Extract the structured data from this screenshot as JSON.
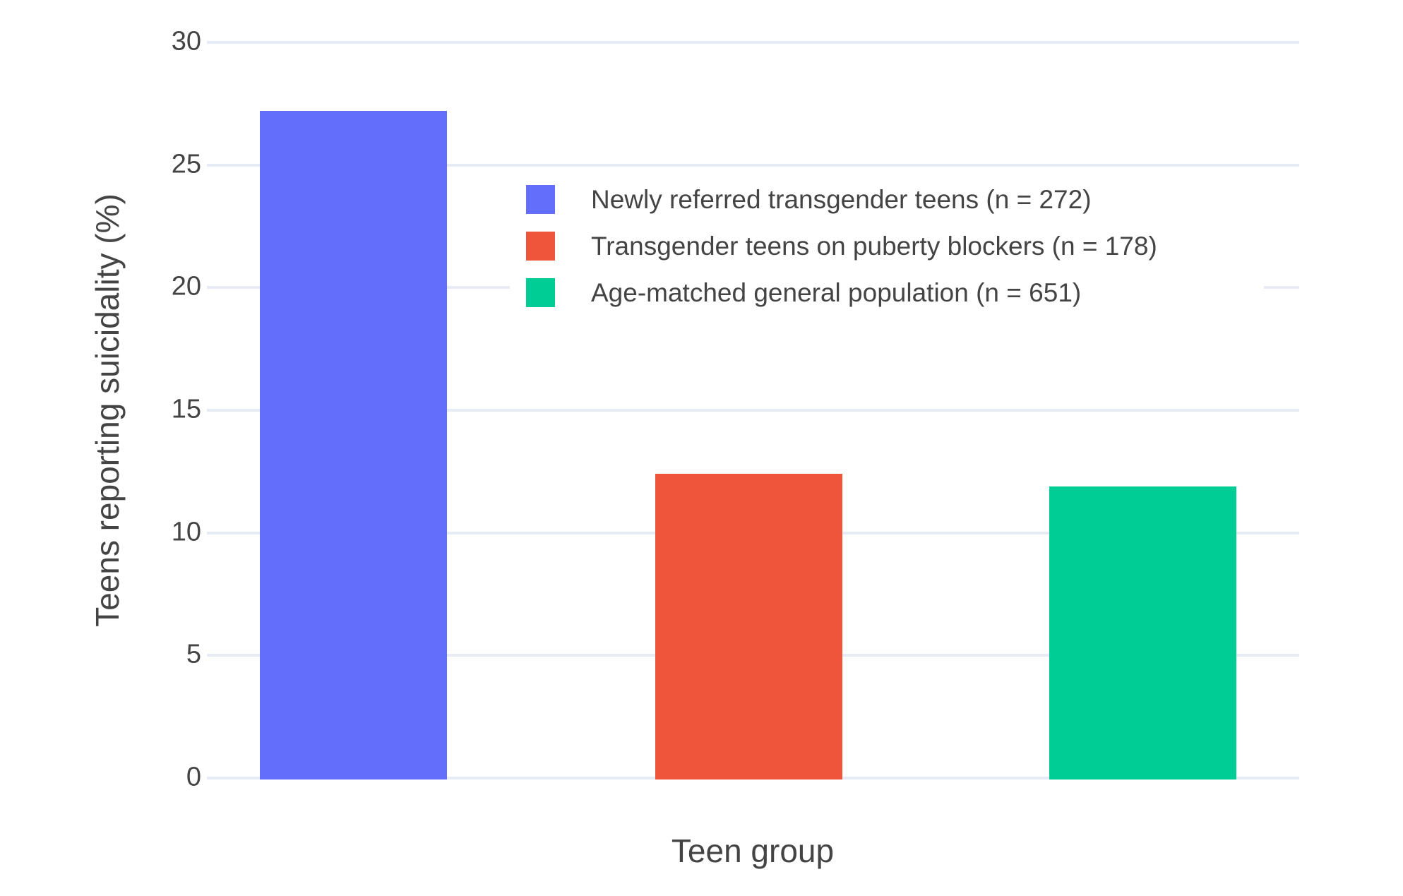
{
  "chart_data": {
    "type": "bar",
    "title": "",
    "xlabel": "Teen group",
    "ylabel": "Teens reporting suicidality (%)",
    "ylim": [
      0,
      30
    ],
    "yticks": [
      0,
      5,
      10,
      15,
      20,
      25,
      30
    ],
    "grid": true,
    "legend_position": "inside-top-right",
    "bars": [
      {
        "label": "Newly referred transgender teens (n = 272)",
        "value": 27.2,
        "color": "#636EFA"
      },
      {
        "label": "Transgender teens on puberty blockers (n = 178)",
        "value": 12.4,
        "color": "#EF553B"
      },
      {
        "label": "Age-matched general population (n = 651)",
        "value": 11.9,
        "color": "#00CC96"
      }
    ]
  },
  "colors": {
    "gridline": "#E6EBF4",
    "text": "#444444",
    "background": "#FFFFFF"
  }
}
